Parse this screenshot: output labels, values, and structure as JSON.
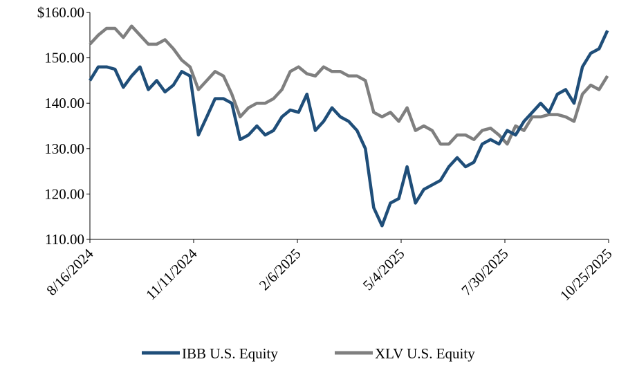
{
  "chart_data": {
    "type": "line",
    "x": [
      "8/16/2024",
      "8/23/2024",
      "8/30/2024",
      "9/6/2024",
      "9/13/2024",
      "9/20/2024",
      "9/27/2024",
      "10/4/2024",
      "10/11/2024",
      "10/18/2024",
      "10/25/2024",
      "11/1/2024",
      "11/8/2024",
      "11/15/2024",
      "11/22/2024",
      "11/29/2024",
      "12/6/2024",
      "12/13/2024",
      "12/20/2024",
      "12/27/2024",
      "1/3/2025",
      "1/10/2025",
      "1/17/2025",
      "1/24/2025",
      "1/31/2025",
      "2/7/2025",
      "2/14/2025",
      "2/21/2025",
      "2/28/2025",
      "3/7/2025",
      "3/14/2025",
      "3/21/2025",
      "3/28/2025",
      "4/4/2025",
      "4/11/2025",
      "4/18/2025",
      "4/25/2025",
      "5/2/2025",
      "5/9/2025",
      "5/16/2025",
      "5/23/2025",
      "5/30/2025",
      "6/6/2025",
      "6/13/2025",
      "6/20/2025",
      "6/27/2025",
      "7/4/2025",
      "7/11/2025",
      "7/18/2025",
      "7/25/2025",
      "8/1/2025",
      "8/8/2025",
      "8/15/2025",
      "8/22/2025",
      "8/29/2025",
      "9/5/2025",
      "9/12/2025",
      "9/19/2025",
      "9/26/2025",
      "10/3/2025",
      "10/10/2025",
      "10/17/2025",
      "10/24/2025"
    ],
    "series": [
      {
        "name": "IBB U.S. Equity",
        "color": "#1f4e79",
        "values": [
          145,
          148,
          148,
          147.5,
          143.5,
          146,
          148,
          143,
          145,
          142.5,
          144,
          147,
          146,
          133,
          137,
          141,
          141,
          140,
          132,
          133,
          135,
          133,
          134,
          137,
          138.5,
          138,
          142,
          134,
          136,
          139,
          137,
          136,
          134,
          130,
          117,
          113,
          118,
          119,
          126,
          118,
          121,
          122,
          123,
          126,
          128,
          126,
          127,
          131,
          132,
          131,
          134,
          133,
          136,
          138,
          140,
          138,
          142,
          143,
          140,
          148,
          151,
          152,
          156
        ]
      },
      {
        "name": "XLV U.S. Equity",
        "color": "#7f7f7f",
        "values": [
          153,
          155,
          156.5,
          156.5,
          154.5,
          157,
          155,
          153,
          153,
          154,
          152,
          149.5,
          148,
          143,
          145,
          147,
          146,
          142,
          137,
          139,
          140,
          140,
          141,
          143,
          147,
          148,
          146.5,
          146,
          148,
          147,
          147,
          146,
          146,
          145,
          138,
          137,
          138,
          136,
          139,
          134,
          135,
          134,
          131,
          131,
          133,
          133,
          132,
          134,
          134.5,
          133,
          131,
          135,
          134,
          137,
          137,
          137.5,
          137.5,
          137,
          136,
          142,
          144,
          143,
          146
        ]
      }
    ],
    "xlim": [
      "8/16/2024",
      "10/25/2025"
    ],
    "xticks": [
      "8/16/2024",
      "11/11/2024",
      "2/6/2025",
      "5/4/2025",
      "7/30/2025",
      "10/25/2025"
    ],
    "ylim": [
      110,
      160
    ],
    "yticks": [
      {
        "value": 110,
        "label": "110.00"
      },
      {
        "value": 120,
        "label": "120.00"
      },
      {
        "value": 130,
        "label": "130.00"
      },
      {
        "value": 140,
        "label": "140.00"
      },
      {
        "value": 150,
        "label": "150.00"
      },
      {
        "value": 160,
        "label": "$160.00"
      }
    ],
    "grid": false,
    "legend": "bottom"
  }
}
